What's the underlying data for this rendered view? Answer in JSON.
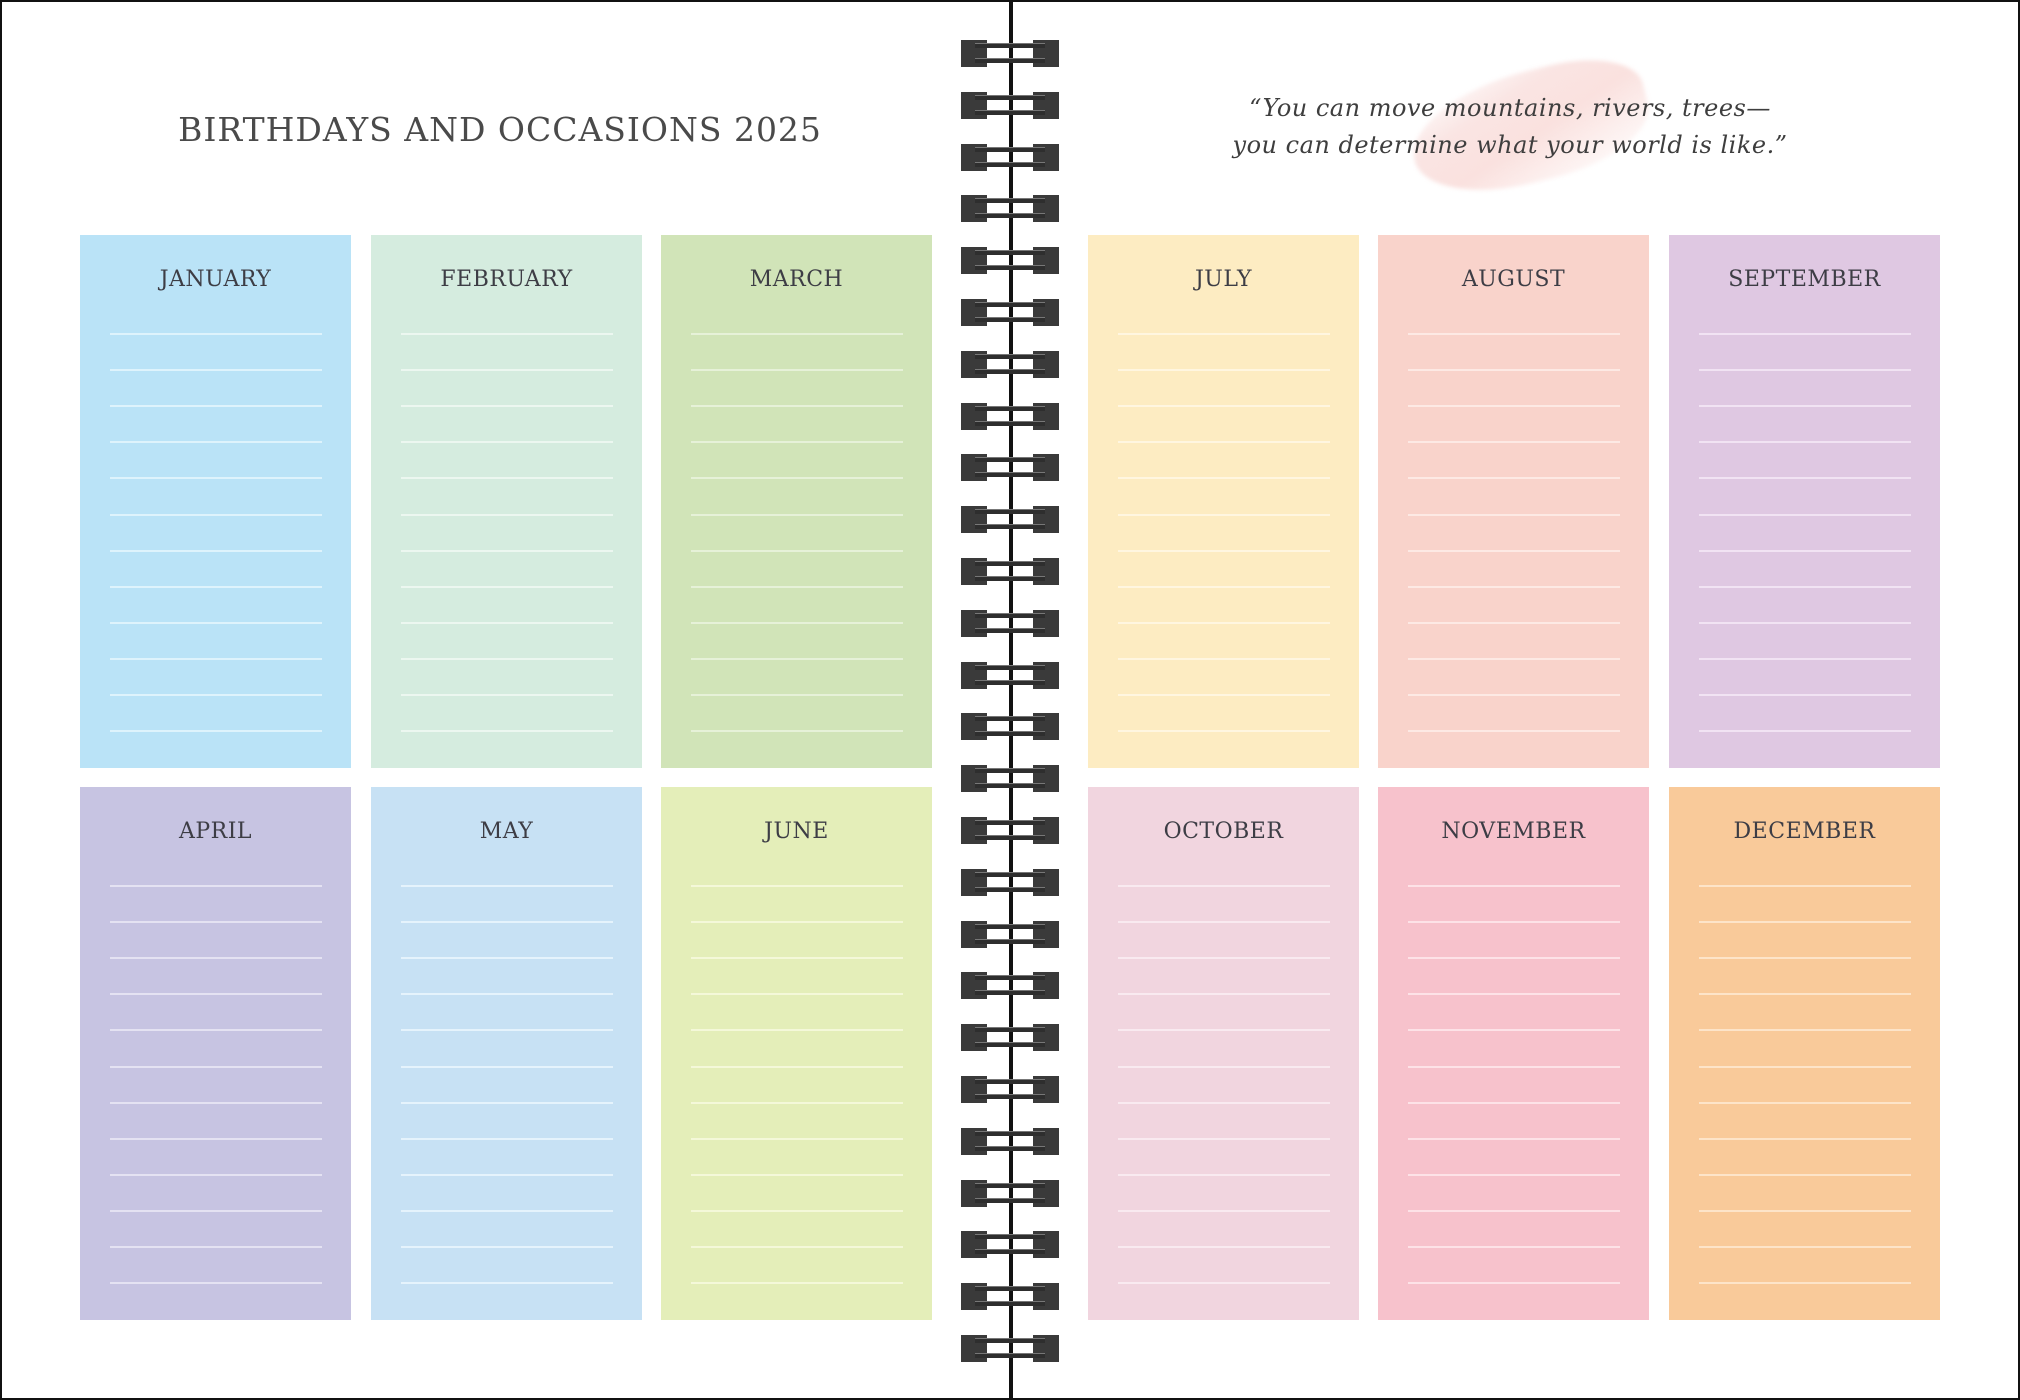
{
  "left_page": {
    "title": "BIRTHDAYS AND OCCASIONS 2025"
  },
  "right_page": {
    "quote_line_1": "“You can move mountains, rivers, trees—",
    "quote_line_2": "you can determine what your world is like.”"
  },
  "lines_per_month": 12,
  "months": [
    {
      "name": "JANUARY",
      "color": "#bae3f7",
      "line_color": "#def3fc"
    },
    {
      "name": "FEBRUARY",
      "color": "#d5ecdf",
      "line_color": "#ecf7f0"
    },
    {
      "name": "MARCH",
      "color": "#d1e4b8",
      "line_color": "#e6f1d8"
    },
    {
      "name": "APRIL",
      "color": "#c7c4e2",
      "line_color": "#e4e2f2"
    },
    {
      "name": "MAY",
      "color": "#c7e1f4",
      "line_color": "#e5f3fc"
    },
    {
      "name": "JUNE",
      "color": "#e4eeb9",
      "line_color": "#f4f8d9"
    },
    {
      "name": "JULY",
      "color": "#fdecc2",
      "line_color": "#fff6e0"
    },
    {
      "name": "AUGUST",
      "color": "#f9d3cb",
      "line_color": "#fde9e4"
    },
    {
      "name": "SEPTEMBER",
      "color": "#dfc8e2",
      "line_color": "#f1e3f3"
    },
    {
      "name": "OCTOBER",
      "color": "#f1d5df",
      "line_color": "#f9eaf0"
    },
    {
      "name": "NOVEMBER",
      "color": "#f7c2cc",
      "line_color": "#fde2e7"
    },
    {
      "name": "DECEMBER",
      "color": "#f9ca9a",
      "line_color": "#fde4c9"
    }
  ]
}
